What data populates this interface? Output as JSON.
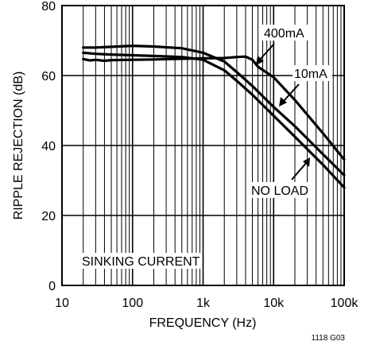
{
  "chart_data": {
    "type": "line",
    "title": "",
    "xlabel": "FREQUENCY (Hz)",
    "ylabel": "RIPPLE REJECTION (dB)",
    "xscale": "log",
    "xlim": [
      10,
      100000
    ],
    "ylim": [
      0,
      80
    ],
    "xticks": [
      10,
      100,
      1000,
      10000,
      100000
    ],
    "xtick_labels": [
      "10",
      "100",
      "1k",
      "10k",
      "100k"
    ],
    "yticks": [
      0,
      20,
      40,
      60,
      80
    ],
    "ytick_labels": [
      "0",
      "20",
      "40",
      "60",
      "80"
    ],
    "grid": true,
    "annotation": "SINKING CURRENT",
    "figure_code": "1118 G03",
    "series": [
      {
        "name": "NO LOAD",
        "x": [
          20,
          30,
          50,
          100,
          200,
          500,
          1000,
          2000,
          3000,
          5000,
          10000,
          20000,
          50000,
          100000
        ],
        "y": [
          66.5,
          66.2,
          66.0,
          65.8,
          65.6,
          65.3,
          64.5,
          61.5,
          58.5,
          54.5,
          48.5,
          42.5,
          34.5,
          28.0
        ]
      },
      {
        "name": "10mA",
        "x": [
          20,
          30,
          50,
          100,
          200,
          500,
          1000,
          2000,
          3000,
          5000,
          10000,
          20000,
          50000,
          100000
        ],
        "y": [
          68.0,
          68.0,
          68.2,
          68.5,
          68.3,
          67.8,
          66.5,
          64.0,
          61.0,
          57.0,
          51.0,
          45.5,
          37.5,
          31.5
        ]
      },
      {
        "name": "400mA",
        "x": [
          20,
          25,
          30,
          40,
          50,
          100,
          200,
          500,
          1000,
          2000,
          3000,
          4000,
          5000,
          6000,
          10000,
          20000,
          50000,
          100000
        ],
        "y": [
          64.7,
          64.3,
          64.5,
          64.2,
          64.4,
          64.5,
          64.6,
          64.8,
          64.9,
          65.0,
          65.3,
          65.4,
          64.5,
          62.5,
          59.5,
          53.0,
          43.5,
          36.0
        ]
      }
    ],
    "labels": [
      "400mA",
      "10mA",
      "NO LOAD"
    ]
  }
}
